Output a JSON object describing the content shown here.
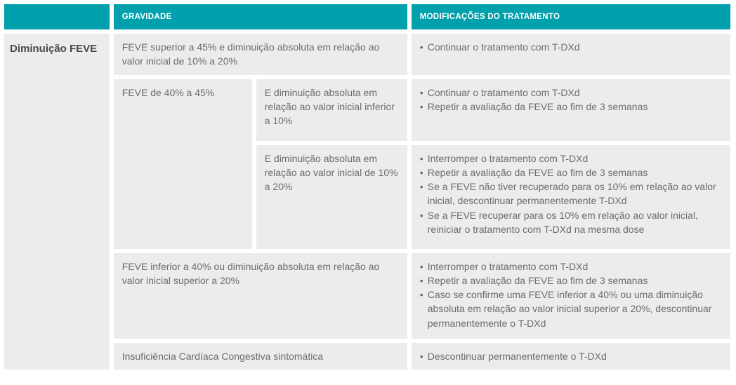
{
  "colors": {
    "header_bg": "#00A0AD",
    "header_text": "#FFFFFF",
    "cell_bg": "#ECECEC",
    "body_text": "#6B6C6E",
    "label_text": "#48484A",
    "page_bg": "#FFFFFF"
  },
  "table": {
    "headers": {
      "blank": "",
      "gravidade": "GRAVIDADE",
      "modificacoes": "MODIFICAÇÕES DO TRATAMENTO"
    },
    "row_label": "Diminuição FEVE",
    "rows": {
      "r1": {
        "gravidade": "FEVE superior a 45% e diminuição absoluta em relação ao valor inicial de 10% a 20%",
        "tratamento": [
          "Continuar o tratamento com T-DXd"
        ]
      },
      "r2": {
        "gravidade_main": "FEVE de 40% a 45%",
        "gravidade_sub": "E diminuição absoluta em relação ao valor inicial inferior a 10%",
        "tratamento": [
          "Continuar o tratamento com T-DXd",
          "Repetir a avaliação da FEVE ao fim de 3 semanas"
        ]
      },
      "r3": {
        "gravidade_sub": "E diminuição absoluta em relação ao valor inicial de 10% a 20%",
        "tratamento": [
          "Interromper o tratamento com T-DXd",
          "Repetir a avaliação da FEVE ao fim de 3 semanas",
          "Se a FEVE não tiver recuperado para os 10% em relação ao valor inicial, descontinuar permanentemente T-DXd",
          "Se a FEVE recuperar para os 10% em relação ao valor inicial, reiniciar o tratamento com T-DXd na mesma dose"
        ]
      },
      "r4": {
        "gravidade": "FEVE inferior a 40% ou diminuição absoluta em relação ao valor inicial superior a 20%",
        "tratamento": [
          "Interromper o tratamento com T-DXd",
          "Repetir a avaliação da FEVE ao fim de 3 semanas",
          "Caso se confirme uma FEVE inferior a 40% ou uma diminuição absoluta em relação ao valor inicial superior a 20%, descontinuar permanentemente o T-DXd"
        ]
      },
      "r5": {
        "gravidade": "Insuficiência Cardíaca Congestiva sintomática",
        "tratamento": [
          "Descontinuar permanentemente o T-DXd"
        ]
      }
    }
  }
}
